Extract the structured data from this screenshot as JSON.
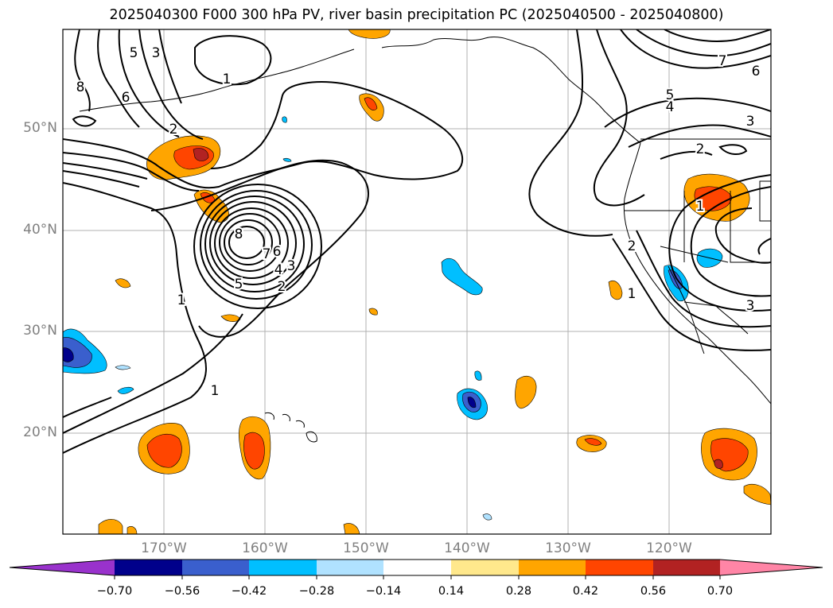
{
  "title": "2025040300 F000 300 hPa PV, river basin precipitation PC (2025040500 - 2025040800)",
  "axes": {
    "lat_labels": [
      "50°N",
      "40°N",
      "30°N",
      "20°N"
    ],
    "lon_labels": [
      "170°W",
      "160°W",
      "150°W",
      "140°W",
      "130°W",
      "120°W"
    ]
  },
  "colorbar": {
    "tick_labels": [
      "−0.70",
      "−0.56",
      "−0.42",
      "−0.28",
      "−0.14",
      "0.14",
      "0.28",
      "0.42",
      "0.56",
      "0.70"
    ],
    "colors": [
      "#9932CC",
      "#00008B",
      "#3A5FCD",
      "#00BFFF",
      "#B0E2FF",
      "#FFFFFF",
      "#FFE88C",
      "#FFA500",
      "#FF4500",
      "#B22222",
      "#FF85A6"
    ]
  },
  "contour_labels": [
    "8",
    "5",
    "3",
    "1",
    "6",
    "2",
    "7",
    "6",
    "5",
    "4",
    "3",
    "2",
    "1",
    "8",
    "6",
    "7",
    "4",
    "5",
    "3",
    "2",
    "1",
    "1",
    "3",
    "2",
    "1"
  ]
}
